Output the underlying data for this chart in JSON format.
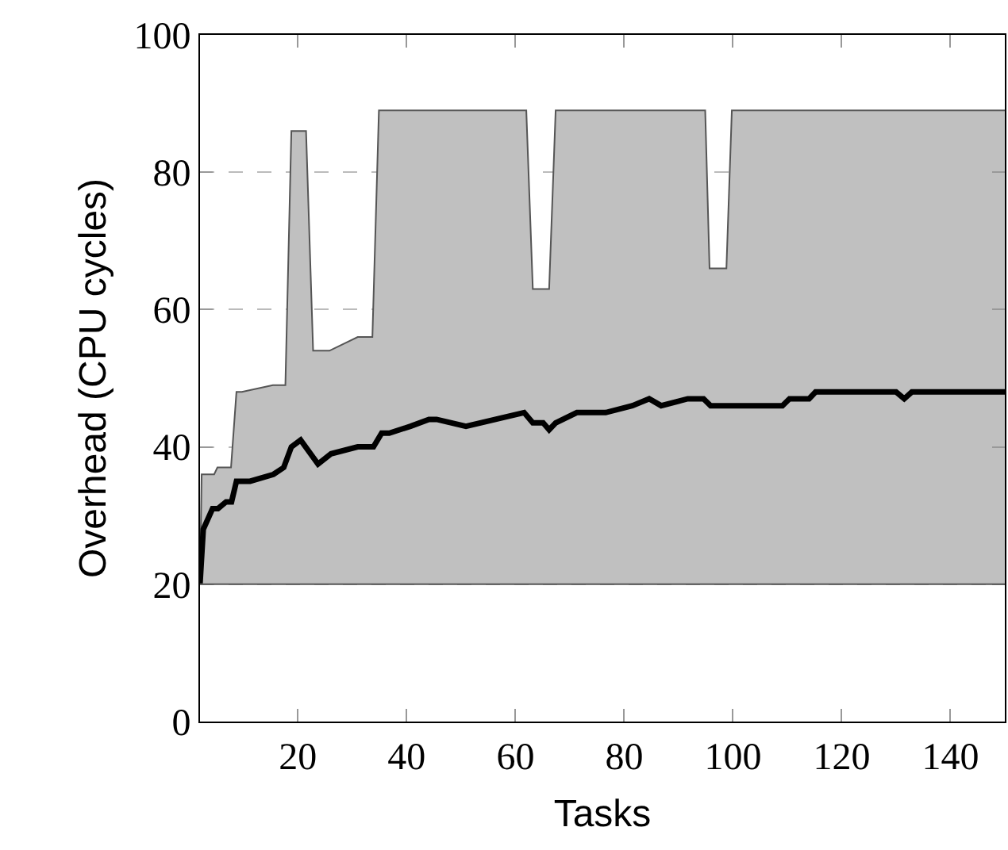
{
  "chart_data": {
    "type": "line",
    "xlabel": "Tasks",
    "ylabel": "Overhead (CPU cycles)",
    "xlim": [
      2,
      150
    ],
    "xticks": [
      20,
      40,
      60,
      80,
      100,
      120,
      140
    ],
    "ylim": [
      0,
      100
    ],
    "yticks": [
      0,
      20,
      40,
      60,
      80,
      100
    ],
    "grid": "y",
    "ref_lines": [
      {
        "axis": "y",
        "value": 20,
        "color": "#555555"
      }
    ],
    "marker": "none",
    "line_style": "solid",
    "series": [
      {
        "type": "area",
        "color": "#c0c0c0",
        "x": [
          2,
          2.3,
          4.6,
          5.2,
          7.7,
          8.7,
          9.7,
          15.4,
          17.7,
          18.8,
          21.5,
          22.8,
          25.8,
          31,
          33.7,
          34.9,
          62,
          63.2,
          66.2,
          67.4,
          94.9,
          95.7,
          98.8,
          99.8,
          150
        ],
        "values": [
          20,
          36,
          36,
          37,
          37,
          48,
          48,
          49,
          49,
          86,
          86,
          54,
          54,
          56,
          56,
          89,
          89,
          63,
          63,
          89,
          89,
          66,
          66,
          89,
          89
        ]
      },
      {
        "color": "#000000",
        "x": [
          2,
          2.6,
          4.3,
          5.3,
          6.8,
          7.8,
          8.7,
          11.2,
          15.5,
          17.4,
          18.8,
          20.5,
          23.7,
          26.1,
          31,
          33.9,
          35.4,
          36.8,
          40.7,
          44.1,
          45.5,
          50.9,
          61.6,
          63.2,
          65.1,
          66.2,
          67.4,
          71.3,
          76.6,
          81.5,
          84.6,
          86.8,
          91.7,
          94.6,
          95.9,
          109.1,
          110.4,
          114,
          115.2,
          130,
          131.5,
          132.9,
          150
        ],
        "values": [
          20,
          28,
          31,
          31,
          32,
          32,
          35,
          35,
          36,
          37,
          40,
          41,
          37.5,
          39,
          40,
          40,
          42,
          42,
          43,
          44,
          44,
          43,
          45,
          43.5,
          43.5,
          42.5,
          43.5,
          45,
          45,
          46,
          47,
          46,
          47,
          47,
          46,
          46,
          47,
          47,
          48,
          48,
          47,
          48,
          48
        ]
      }
    ]
  }
}
